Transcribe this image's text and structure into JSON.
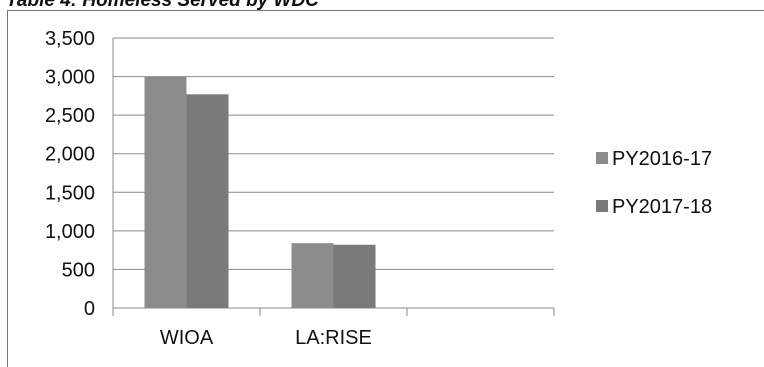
{
  "caption": "Table 4: Homeless Served by WDC",
  "chart_data": {
    "type": "bar",
    "categories": [
      "WIOA",
      "LA:RISE",
      ""
    ],
    "series": [
      {
        "name": "PY2016-17",
        "values": [
          3000,
          840,
          null
        ],
        "color": "#8c8c8c"
      },
      {
        "name": "PY2017-18",
        "values": [
          2770,
          820,
          null
        ],
        "color": "#7a7a7a"
      }
    ],
    "yticks": [
      "0",
      "500",
      "1,000",
      "1,500",
      "2,000",
      "2,500",
      "3,000",
      "3,500"
    ],
    "ylim": [
      0,
      3500
    ],
    "grid": true,
    "legend_position": "right",
    "title": "",
    "xlabel": "",
    "ylabel": ""
  }
}
